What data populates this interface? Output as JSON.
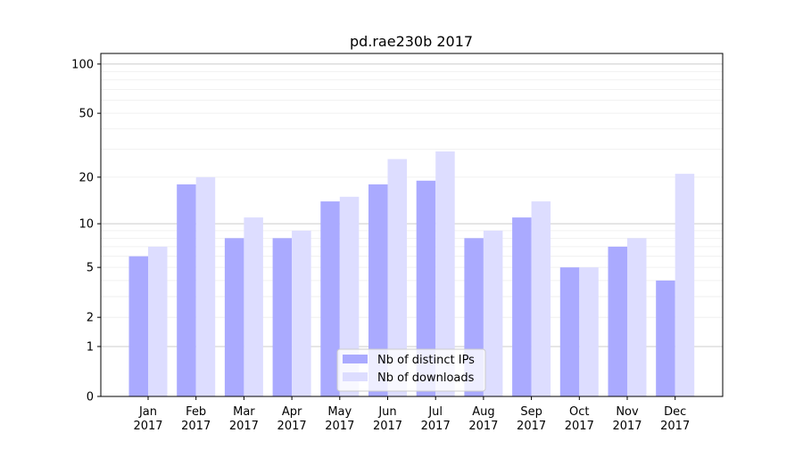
{
  "chart_data": {
    "type": "bar",
    "title": "pd.rae230b 2017",
    "xlabel": "",
    "ylabel": "",
    "yscale": "log(1+y)",
    "ylim": [
      0,
      116
    ],
    "yticks": [
      0,
      1,
      2,
      5,
      10,
      20,
      50,
      100
    ],
    "grid": true,
    "legend_position": "bottom-center",
    "categories": [
      "Jan\n2017",
      "Feb\n2017",
      "Mar\n2017",
      "Apr\n2017",
      "May\n2017",
      "Jun\n2017",
      "Jul\n2017",
      "Aug\n2017",
      "Sep\n2017",
      "Oct\n2017",
      "Nov\n2017",
      "Dec\n2017"
    ],
    "series": [
      {
        "name": "Nb of distinct IPs",
        "color": "#aaaaff",
        "values": [
          6,
          18,
          8,
          8,
          14,
          18,
          19,
          8,
          11,
          5,
          7,
          4
        ]
      },
      {
        "name": "Nb of downloads",
        "color": "#ddddff",
        "values": [
          7,
          20,
          11,
          9,
          15,
          26,
          29,
          9,
          14,
          5,
          8,
          21
        ]
      }
    ]
  }
}
